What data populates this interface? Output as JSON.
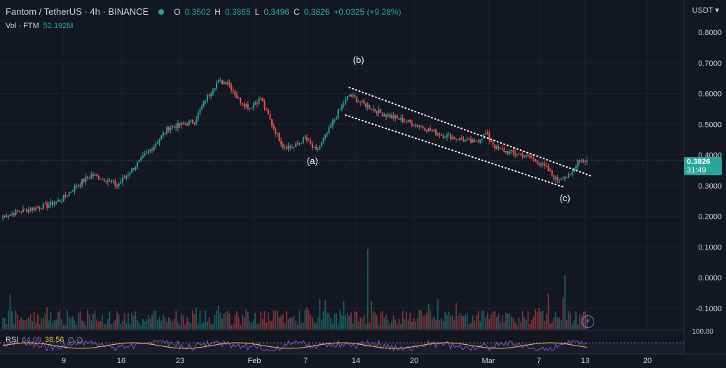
{
  "header": {
    "symbol": "Fantom / TetherUS · 4h · BINANCE",
    "o_label": "O",
    "o_value": "0.3502",
    "h_label": "H",
    "h_value": "0.3865",
    "l_label": "L",
    "l_value": "0.3496",
    "c_label": "C",
    "c_value": "0.3826",
    "change": "+0.0325 (+9.28%)",
    "vol_label": "Vol · FTM",
    "vol_value": "52.192M",
    "currency": "USDT ▾"
  },
  "price_badge": {
    "price": "0.3826",
    "countdown": "31:49"
  },
  "rsi": {
    "label": "RSI",
    "v1": "64.08",
    "v2": "38.56",
    "v3": "∅ ∅"
  },
  "annotations": [
    "(a)",
    "(b)",
    "(c)"
  ],
  "colors": {
    "bg": "#131722",
    "up": "#26a69a",
    "down": "#ef5350",
    "grid": "#1e222d",
    "rsi_line": "#7e57c2",
    "rsi_ma": "#e6c84a"
  },
  "chart_data": {
    "type": "candlestick",
    "title": "Fantom / TetherUS · 4h · BINANCE",
    "y_axis_ticks": [
      "0.8000",
      "0.7000",
      "0.6000",
      "0.5000",
      "0.4000",
      "0.3000",
      "0.2000",
      "0.1000",
      "0.0000",
      "-0.1000"
    ],
    "x_axis_ticks": [
      "9",
      "16",
      "23",
      "Feb",
      "7",
      "14",
      "20",
      "Mar",
      "7",
      "13",
      "20"
    ],
    "ylim": [
      -0.15,
      0.85
    ],
    "rsi_axis_label": "100.00",
    "price_path": [
      [
        0,
        0.2
      ],
      [
        8,
        0.215
      ],
      [
        16,
        0.225
      ],
      [
        24,
        0.235
      ],
      [
        32,
        0.255
      ],
      [
        40,
        0.3
      ],
      [
        48,
        0.335
      ],
      [
        56,
        0.32
      ],
      [
        62,
        0.3
      ],
      [
        68,
        0.34
      ],
      [
        76,
        0.39
      ],
      [
        82,
        0.43
      ],
      [
        90,
        0.49
      ],
      [
        98,
        0.5
      ],
      [
        104,
        0.51
      ],
      [
        110,
        0.58
      ],
      [
        116,
        0.635
      ],
      [
        122,
        0.64
      ],
      [
        128,
        0.58
      ],
      [
        134,
        0.555
      ],
      [
        140,
        0.585
      ],
      [
        146,
        0.5
      ],
      [
        152,
        0.43
      ],
      [
        158,
        0.425
      ],
      [
        164,
        0.455
      ],
      [
        170,
        0.41
      ],
      [
        176,
        0.47
      ],
      [
        182,
        0.54
      ],
      [
        188,
        0.595
      ],
      [
        196,
        0.565
      ],
      [
        206,
        0.535
      ],
      [
        216,
        0.515
      ],
      [
        226,
        0.495
      ],
      [
        236,
        0.47
      ],
      [
        246,
        0.455
      ],
      [
        256,
        0.44
      ],
      [
        262,
        0.47
      ],
      [
        268,
        0.42
      ],
      [
        274,
        0.41
      ],
      [
        282,
        0.4
      ],
      [
        290,
        0.38
      ],
      [
        296,
        0.35
      ],
      [
        300,
        0.32
      ],
      [
        304,
        0.33
      ],
      [
        308,
        0.33
      ],
      [
        312,
        0.3826
      ]
    ],
    "trendline_upper": [
      [
        0.62,
        188
      ],
      [
        0.33,
        320
      ]
    ],
    "trendline_lower": [
      [
        0.53,
        186
      ],
      [
        0.296,
        304
      ]
    ],
    "labels": [
      {
        "text": "(a)",
        "price": 0.37,
        "bar": 168
      },
      {
        "text": "(b)",
        "price": 0.7,
        "bar": 193
      },
      {
        "text": "(c)",
        "price": 0.25,
        "bar": 305
      }
    ]
  }
}
